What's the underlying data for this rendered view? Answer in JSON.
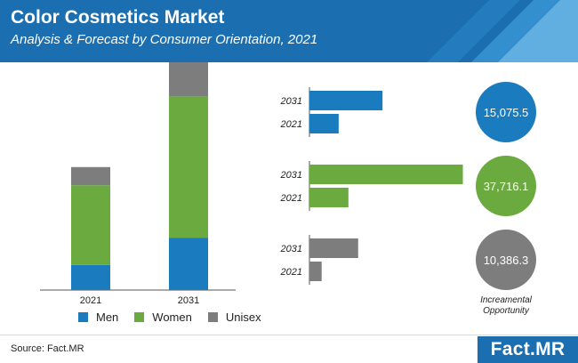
{
  "header": {
    "title": "Color Cosmetics Market",
    "subtitle": "Analysis & Forecast by Consumer Orientation, 2021"
  },
  "colors": {
    "header": "#1b6fb0",
    "men": "#1b7bbf",
    "women": "#6aaa3f",
    "unisex": "#7d7d7d"
  },
  "chart_data": [
    {
      "type": "bar",
      "stacked": true,
      "categories": [
        "2021",
        "2031"
      ],
      "series": [
        {
          "name": "Men",
          "values": [
            11,
            23
          ],
          "color": "#1b7bbf"
        },
        {
          "name": "Women",
          "values": [
            35,
            62
          ],
          "color": "#6aaa3f"
        },
        {
          "name": "Unisex",
          "values": [
            8,
            15
          ],
          "color": "#7d7d7d"
        }
      ],
      "ylim": [
        0,
        100
      ],
      "grid": false,
      "legend": "bottom"
    },
    {
      "type": "bar",
      "orientation": "horizontal",
      "groups": [
        {
          "segment": "Men",
          "color": "#1b7bbf",
          "bars": [
            {
              "label": "2031",
              "value": 30
            },
            {
              "label": "2021",
              "value": 12
            }
          ],
          "incremental": "15,075.5"
        },
        {
          "segment": "Women",
          "color": "#6aaa3f",
          "bars": [
            {
              "label": "2031",
              "value": 63
            },
            {
              "label": "2021",
              "value": 16
            }
          ],
          "incremental": "37,716.1"
        },
        {
          "segment": "Unisex",
          "color": "#7d7d7d",
          "bars": [
            {
              "label": "2031",
              "value": 20
            },
            {
              "label": "2021",
              "value": 5
            }
          ],
          "incremental": "10,386.3"
        }
      ],
      "xlim": [
        0,
        65
      ],
      "grid": false
    }
  ],
  "incremental_label": "Increamental Opportunity",
  "legend": {
    "items": [
      {
        "label": "Men",
        "color": "#1b7bbf"
      },
      {
        "label": "Women",
        "color": "#6aaa3f"
      },
      {
        "label": "Unisex",
        "color": "#7d7d7d"
      }
    ]
  },
  "footer": {
    "source": "Source: Fact.MR",
    "logo": "Fact.MR"
  }
}
